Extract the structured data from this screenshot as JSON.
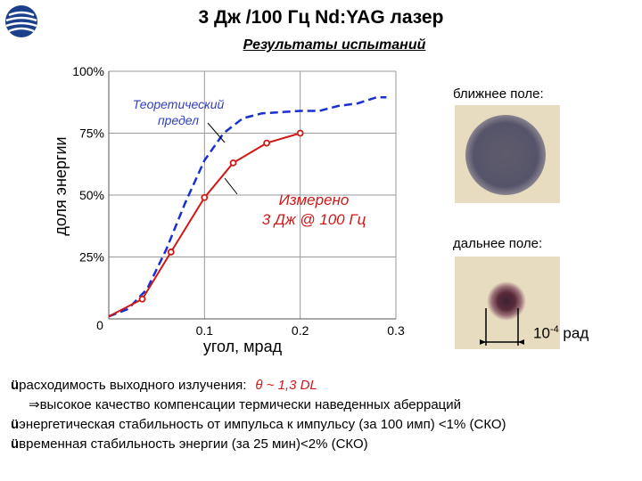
{
  "header": {
    "title": "3 Дж /100 Гц Nd:YAG лазер",
    "subtitle": "Результаты испытаний"
  },
  "chart_data": {
    "type": "line",
    "title": "",
    "xlabel": "угол, мрад",
    "ylabel": "доля энергии",
    "xlim": [
      0,
      0.3
    ],
    "ylim": [
      0,
      100
    ],
    "x_ticks": [
      "0",
      "0.1",
      "0.2",
      "0.3"
    ],
    "y_ticks": [
      "25%",
      "50%",
      "75%",
      "100%"
    ],
    "grid": true,
    "series": [
      {
        "name": "Теоретический предел",
        "color": "#1a2fd0",
        "style": "dashed",
        "x": [
          0.0,
          0.02,
          0.04,
          0.06,
          0.08,
          0.1,
          0.12,
          0.14,
          0.16,
          0.18,
          0.2,
          0.22,
          0.24,
          0.26,
          0.28,
          0.29
        ],
        "y": [
          1,
          4,
          12,
          28,
          47,
          64,
          75,
          81,
          83,
          83.5,
          84,
          84,
          86,
          87,
          89.5,
          89.5
        ]
      },
      {
        "name": "Измерено 3 Дж @ 100 Гц",
        "color": "#d01818",
        "style": "solid",
        "x": [
          0.0,
          0.035,
          0.065,
          0.1,
          0.13,
          0.165,
          0.2
        ],
        "y": [
          1,
          8,
          27,
          49,
          63,
          71,
          75
        ]
      }
    ],
    "annotations": [
      {
        "id": "theory",
        "lines": [
          "Теоретический",
          "предел"
        ]
      },
      {
        "id": "measured",
        "lines": [
          "Измерено",
          "3 Дж @ 100 Гц"
        ]
      }
    ]
  },
  "beam": {
    "near_label": "ближнее поле:",
    "far_label": "дальнее поле:",
    "rad_base": "10",
    "rad_exp": "-4",
    "rad_unit": " рад"
  },
  "bullets": {
    "check": "ü",
    "line1": "расходимость выходного излучения:",
    "theta": "θ ~ 1,3 DL",
    "line2": "⇒высокое качество компенсации термически наведенных аберраций",
    "line3": "энергетическая стабильность от импульса к импульсу (за 100 имп) <1% (СКО)",
    "line4": "временная стабильность энергии (за 25 мин)<2% (СКО)"
  },
  "colors": {
    "theory": "#1a2fd0",
    "measured": "#d01818",
    "photo_bg": "#e8dcc0"
  }
}
